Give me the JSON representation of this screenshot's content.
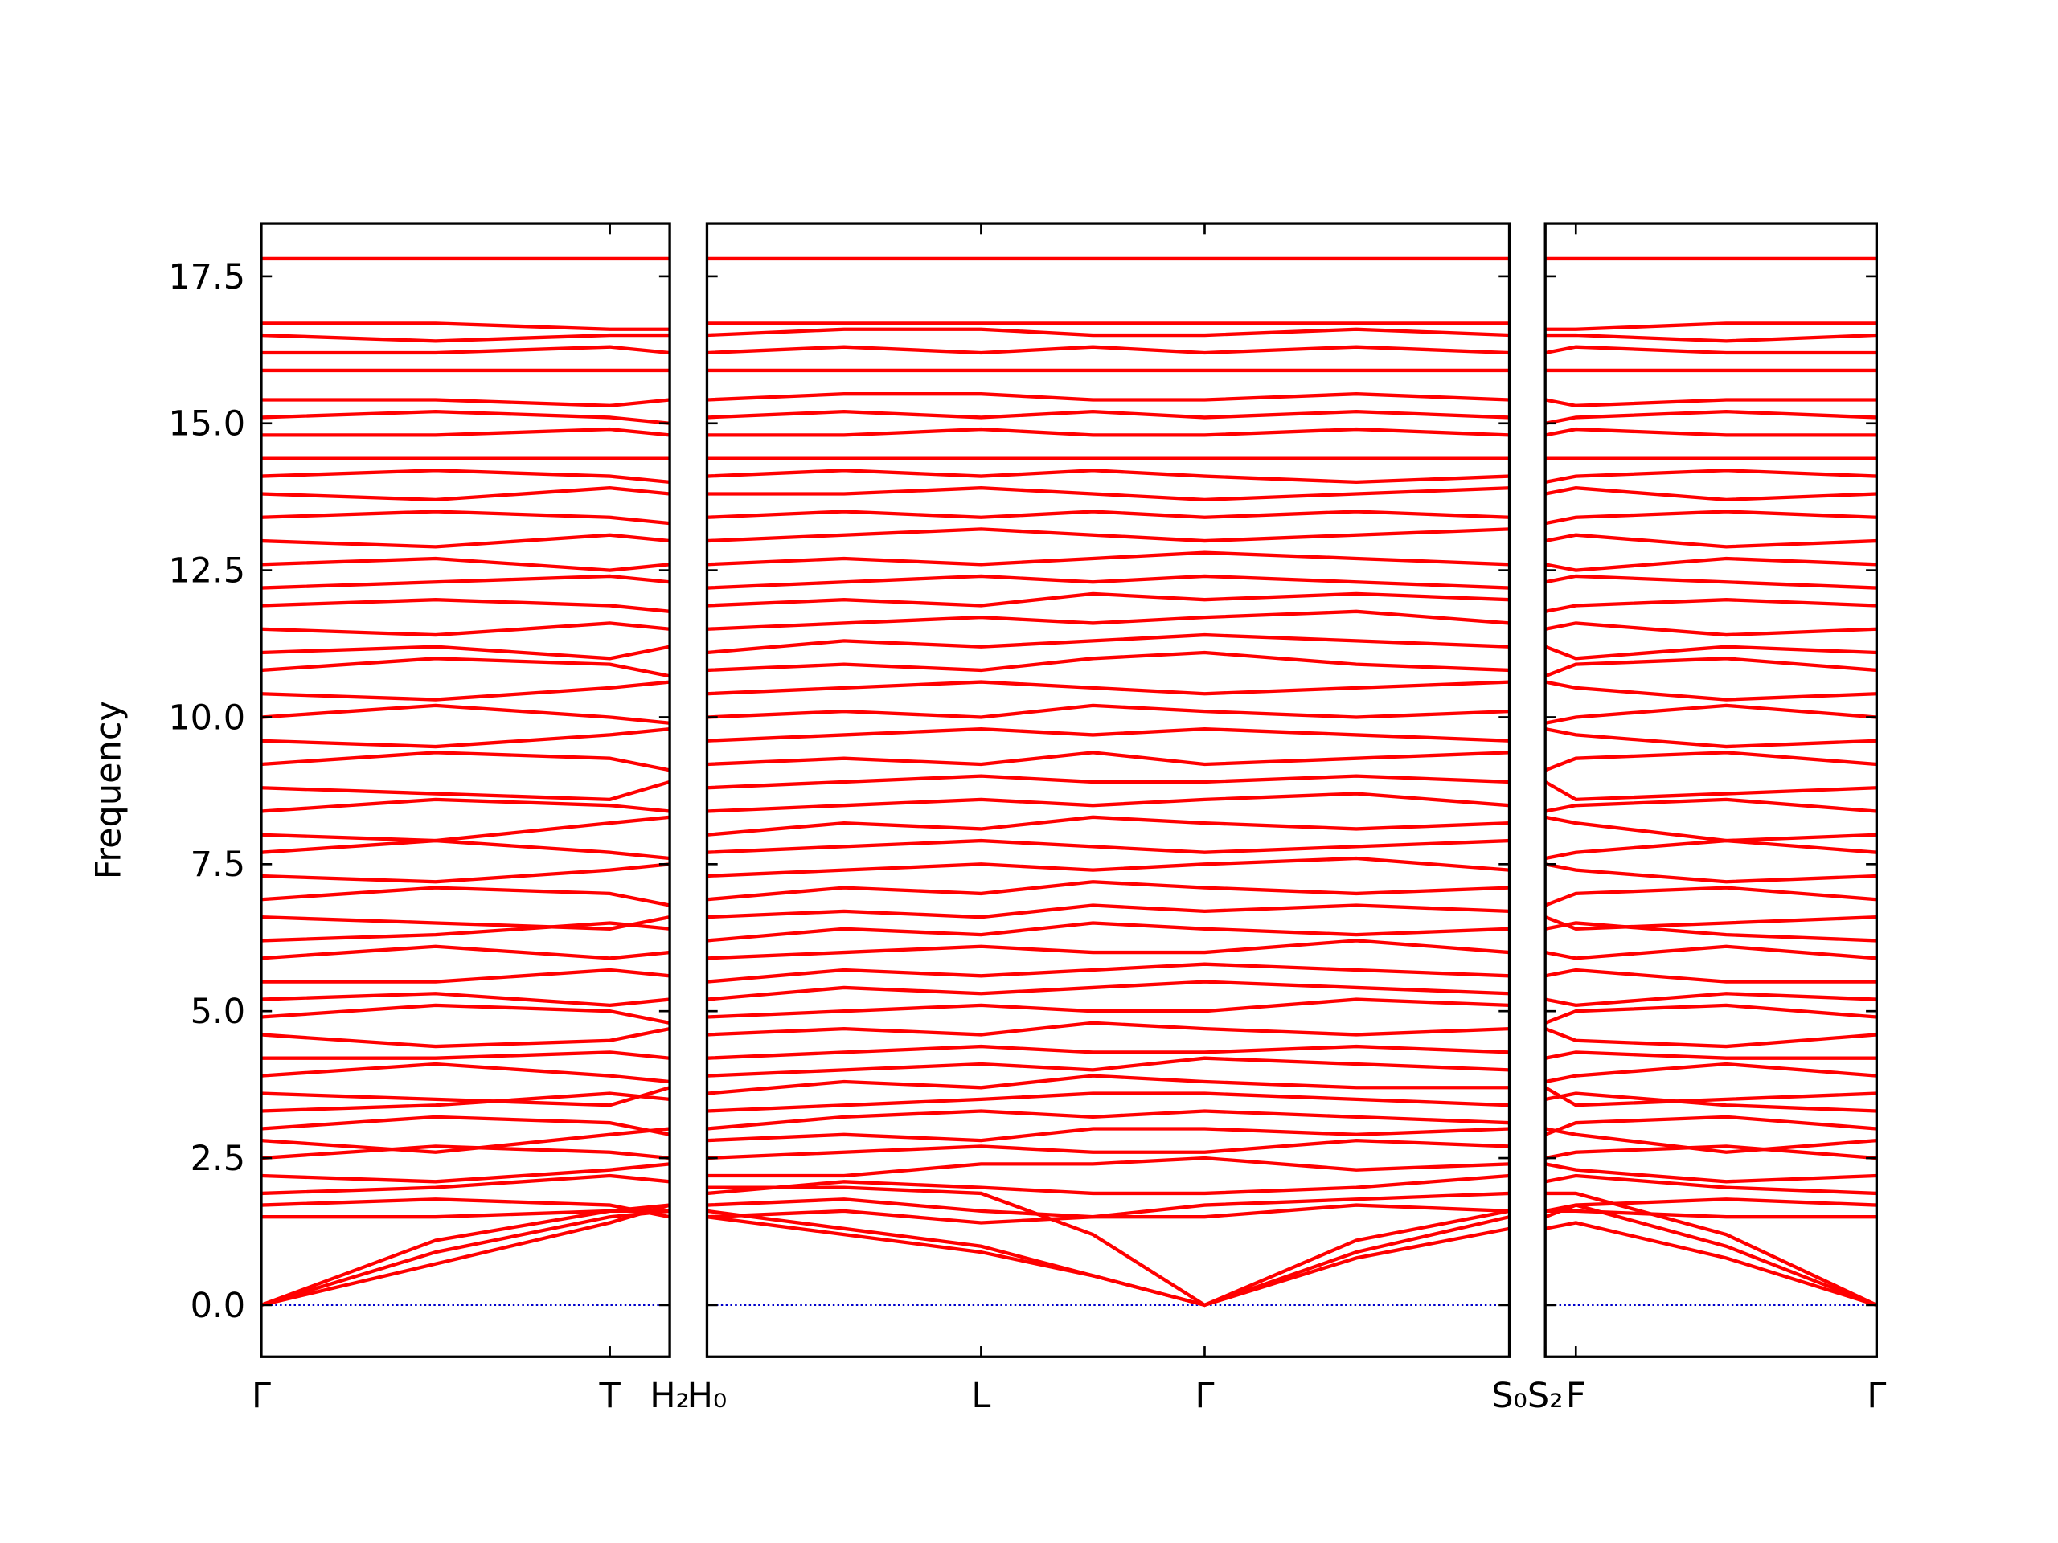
{
  "chart_data": [
    {
      "type": "line",
      "color": "#ff0000",
      "ylabel": "Frequency",
      "ytick_labels": true,
      "zero_line": {
        "value": 0,
        "color": "#0000cc"
      },
      "x": [
        0,
        1.31,
        2.62,
        3.07
      ],
      "xlim": [
        0,
        3.07
      ],
      "xticks": [
        {
          "value": 0,
          "label": "Γ"
        },
        {
          "value": 2.62,
          "label": "T"
        },
        {
          "value": 3.07,
          "label": "H₂"
        }
      ],
      "ylim": [
        -0.88,
        18.4
      ],
      "yticks": [
        {
          "value": 0,
          "label": "0.0"
        },
        2.5,
        {
          "value": 5,
          "label": "5.0"
        },
        7.5,
        {
          "value": 10,
          "label": "10.0"
        },
        12.5,
        {
          "value": 15,
          "label": "15.0"
        },
        17.5
      ],
      "bands": [
        [
          0,
          0.9,
          1.5,
          1.6
        ],
        [
          0,
          0.7,
          1.4,
          1.7
        ],
        [
          0,
          1.1,
          1.6,
          1.7
        ],
        [
          1.5,
          1.5,
          1.6,
          1.6
        ],
        [
          1.7,
          1.8,
          1.7,
          1.5
        ],
        [
          1.9,
          2.0,
          2.2,
          2.1
        ],
        [
          2.2,
          2.1,
          2.3,
          2.4
        ],
        [
          2.5,
          2.7,
          2.6,
          2.5
        ],
        [
          2.8,
          2.6,
          2.9,
          3.0
        ],
        [
          3.0,
          3.2,
          3.1,
          2.9
        ],
        [
          3.3,
          3.4,
          3.6,
          3.5
        ],
        [
          3.6,
          3.5,
          3.4,
          3.7
        ],
        [
          3.9,
          4.1,
          3.9,
          3.8
        ],
        [
          4.2,
          4.2,
          4.3,
          4.2
        ],
        [
          4.6,
          4.4,
          4.5,
          4.7
        ],
        [
          4.9,
          5.1,
          5.0,
          4.8
        ],
        [
          5.2,
          5.3,
          5.1,
          5.2
        ],
        [
          5.5,
          5.5,
          5.7,
          5.6
        ],
        [
          5.9,
          6.1,
          5.9,
          6.0
        ],
        [
          6.2,
          6.3,
          6.5,
          6.4
        ],
        [
          6.6,
          6.5,
          6.4,
          6.6
        ],
        [
          6.9,
          7.1,
          7.0,
          6.8
        ],
        [
          7.3,
          7.2,
          7.4,
          7.5
        ],
        [
          7.7,
          7.9,
          7.7,
          7.6
        ],
        [
          8.0,
          7.9,
          8.2,
          8.3
        ],
        [
          8.4,
          8.6,
          8.5,
          8.4
        ],
        [
          8.8,
          8.7,
          8.6,
          8.9
        ],
        [
          9.2,
          9.4,
          9.3,
          9.1
        ],
        [
          9.6,
          9.5,
          9.7,
          9.8
        ],
        [
          10.0,
          10.2,
          10.0,
          9.9
        ],
        [
          10.4,
          10.3,
          10.5,
          10.6
        ],
        [
          10.8,
          11.0,
          10.9,
          10.7
        ],
        [
          11.1,
          11.2,
          11.0,
          11.2
        ],
        [
          11.5,
          11.4,
          11.6,
          11.5
        ],
        [
          11.9,
          12.0,
          11.9,
          11.8
        ],
        [
          12.2,
          12.3,
          12.4,
          12.3
        ],
        [
          12.6,
          12.7,
          12.5,
          12.6
        ],
        [
          13.0,
          12.9,
          13.1,
          13.0
        ],
        [
          13.4,
          13.5,
          13.4,
          13.3
        ],
        [
          13.8,
          13.7,
          13.9,
          13.8
        ],
        [
          14.1,
          14.2,
          14.1,
          14.0
        ],
        [
          14.4,
          14.4,
          14.4,
          14.4
        ],
        [
          14.8,
          14.8,
          14.9,
          14.8
        ],
        [
          15.1,
          15.2,
          15.1,
          15.0
        ],
        [
          15.4,
          15.4,
          15.3,
          15.4
        ],
        [
          15.9,
          15.9,
          15.9,
          15.9
        ],
        [
          16.2,
          16.2,
          16.3,
          16.2
        ],
        [
          16.5,
          16.4,
          16.5,
          16.5
        ],
        [
          16.7,
          16.7,
          16.6,
          16.6
        ],
        [
          17.8,
          17.8,
          17.8,
          17.8
        ]
      ]
    },
    {
      "type": "line",
      "color": "#ff0000",
      "ytick_labels": false,
      "zero_line": {
        "value": 0,
        "color": "#0000cc"
      },
      "x": [
        0,
        1.03,
        2.06,
        2.9,
        3.74,
        4.88,
        6.03
      ],
      "xlim": [
        0,
        6.03
      ],
      "xticks": [
        {
          "value": 0,
          "label": "H₀"
        },
        {
          "value": 2.06,
          "label": "L"
        },
        {
          "value": 3.74,
          "label": "Γ"
        },
        {
          "value": 6.03,
          "label": "S₀"
        }
      ],
      "ylim": [
        -0.88,
        18.4
      ],
      "yticks": [
        {
          "value": 0,
          "label": "0.0"
        },
        2.5,
        {
          "value": 5,
          "label": "5.0"
        },
        7.5,
        {
          "value": 10,
          "label": "10.0"
        },
        12.5,
        {
          "value": 15,
          "label": "15.0"
        },
        17.5
      ],
      "bands": [
        [
          1.5,
          1.2,
          0.9,
          0.5,
          0,
          0.8,
          1.3
        ],
        [
          1.6,
          1.3,
          1.0,
          0.5,
          0,
          0.9,
          1.5
        ],
        [
          2.0,
          2.0,
          1.9,
          1.2,
          0,
          1.1,
          1.6
        ],
        [
          1.5,
          1.6,
          1.4,
          1.5,
          1.5,
          1.7,
          1.6
        ],
        [
          1.7,
          1.8,
          1.6,
          1.5,
          1.7,
          1.8,
          1.9
        ],
        [
          1.9,
          2.1,
          2.0,
          1.9,
          1.9,
          2.0,
          2.2
        ],
        [
          2.2,
          2.2,
          2.4,
          2.4,
          2.5,
          2.3,
          2.4
        ],
        [
          2.5,
          2.6,
          2.7,
          2.6,
          2.6,
          2.8,
          2.7
        ],
        [
          2.8,
          2.9,
          2.8,
          3.0,
          3.0,
          2.9,
          3.0
        ],
        [
          3.0,
          3.2,
          3.3,
          3.2,
          3.3,
          3.2,
          3.1
        ],
        [
          3.3,
          3.4,
          3.5,
          3.6,
          3.6,
          3.5,
          3.4
        ],
        [
          3.6,
          3.8,
          3.7,
          3.9,
          3.8,
          3.7,
          3.7
        ],
        [
          3.9,
          4.0,
          4.1,
          4.0,
          4.2,
          4.1,
          4.0
        ],
        [
          4.2,
          4.3,
          4.4,
          4.3,
          4.3,
          4.4,
          4.3
        ],
        [
          4.6,
          4.7,
          4.6,
          4.8,
          4.7,
          4.6,
          4.7
        ],
        [
          4.9,
          5.0,
          5.1,
          5.0,
          5.0,
          5.2,
          5.1
        ],
        [
          5.2,
          5.4,
          5.3,
          5.4,
          5.5,
          5.4,
          5.3
        ],
        [
          5.5,
          5.7,
          5.6,
          5.7,
          5.8,
          5.7,
          5.6
        ],
        [
          5.9,
          6.0,
          6.1,
          6.0,
          6.0,
          6.2,
          6.0
        ],
        [
          6.2,
          6.4,
          6.3,
          6.5,
          6.4,
          6.3,
          6.4
        ],
        [
          6.6,
          6.7,
          6.6,
          6.8,
          6.7,
          6.8,
          6.7
        ],
        [
          6.9,
          7.1,
          7.0,
          7.2,
          7.1,
          7.0,
          7.1
        ],
        [
          7.3,
          7.4,
          7.5,
          7.4,
          7.5,
          7.6,
          7.4
        ],
        [
          7.7,
          7.8,
          7.9,
          7.8,
          7.7,
          7.8,
          7.9
        ],
        [
          8.0,
          8.2,
          8.1,
          8.3,
          8.2,
          8.1,
          8.2
        ],
        [
          8.4,
          8.5,
          8.6,
          8.5,
          8.6,
          8.7,
          8.5
        ],
        [
          8.8,
          8.9,
          9.0,
          8.9,
          8.9,
          9.0,
          8.9
        ],
        [
          9.2,
          9.3,
          9.2,
          9.4,
          9.2,
          9.3,
          9.4
        ],
        [
          9.6,
          9.7,
          9.8,
          9.7,
          9.8,
          9.7,
          9.6
        ],
        [
          10.0,
          10.1,
          10.0,
          10.2,
          10.1,
          10.0,
          10.1
        ],
        [
          10.4,
          10.5,
          10.6,
          10.5,
          10.4,
          10.5,
          10.6
        ],
        [
          10.8,
          10.9,
          10.8,
          11.0,
          11.1,
          10.9,
          10.8
        ],
        [
          11.1,
          11.3,
          11.2,
          11.3,
          11.4,
          11.3,
          11.2
        ],
        [
          11.5,
          11.6,
          11.7,
          11.6,
          11.7,
          11.8,
          11.6
        ],
        [
          11.9,
          12.0,
          11.9,
          12.1,
          12.0,
          12.1,
          12.0
        ],
        [
          12.2,
          12.3,
          12.4,
          12.3,
          12.4,
          12.3,
          12.2
        ],
        [
          12.6,
          12.7,
          12.6,
          12.7,
          12.8,
          12.7,
          12.6
        ],
        [
          13.0,
          13.1,
          13.2,
          13.1,
          13.0,
          13.1,
          13.2
        ],
        [
          13.4,
          13.5,
          13.4,
          13.5,
          13.4,
          13.5,
          13.4
        ],
        [
          13.8,
          13.8,
          13.9,
          13.8,
          13.7,
          13.8,
          13.9
        ],
        [
          14.1,
          14.2,
          14.1,
          14.2,
          14.1,
          14.0,
          14.1
        ],
        [
          14.4,
          14.4,
          14.4,
          14.4,
          14.4,
          14.4,
          14.4
        ],
        [
          14.8,
          14.8,
          14.9,
          14.8,
          14.8,
          14.9,
          14.8
        ],
        [
          15.1,
          15.2,
          15.1,
          15.2,
          15.1,
          15.2,
          15.1
        ],
        [
          15.4,
          15.5,
          15.5,
          15.4,
          15.4,
          15.5,
          15.4
        ],
        [
          15.9,
          15.9,
          15.9,
          15.9,
          15.9,
          15.9,
          15.9
        ],
        [
          16.2,
          16.3,
          16.2,
          16.3,
          16.2,
          16.3,
          16.2
        ],
        [
          16.5,
          16.6,
          16.6,
          16.5,
          16.5,
          16.6,
          16.5
        ],
        [
          16.7,
          16.7,
          16.7,
          16.7,
          16.7,
          16.7,
          16.7
        ],
        [
          17.8,
          17.8,
          17.8,
          17.8,
          17.8,
          17.8,
          17.8
        ]
      ]
    },
    {
      "type": "line",
      "color": "#ff0000",
      "ytick_labels": false,
      "zero_line": {
        "value": 0,
        "color": "#0000cc"
      },
      "x": [
        0,
        0.23,
        1.36,
        2.49
      ],
      "xlim": [
        0,
        2.49
      ],
      "xticks": [
        {
          "value": 0,
          "label": "S₂"
        },
        {
          "value": 0.23,
          "label": "F"
        },
        {
          "value": 2.49,
          "label": "Γ"
        }
      ],
      "ylim": [
        -0.88,
        18.4
      ],
      "yticks": [
        {
          "value": 0,
          "label": "0.0"
        },
        2.5,
        {
          "value": 5,
          "label": "5.0"
        },
        7.5,
        {
          "value": 10,
          "label": "10.0"
        },
        12.5,
        {
          "value": 15,
          "label": "15.0"
        },
        17.5
      ],
      "bands": [
        [
          1.6,
          1.7,
          1.0,
          0
        ],
        [
          1.3,
          1.4,
          0.8,
          0
        ],
        [
          1.9,
          1.9,
          1.2,
          0
        ],
        [
          1.6,
          1.6,
          1.5,
          1.5
        ],
        [
          1.5,
          1.7,
          1.8,
          1.7
        ],
        [
          2.1,
          2.2,
          2.0,
          1.9
        ],
        [
          2.4,
          2.3,
          2.1,
          2.2
        ],
        [
          2.5,
          2.6,
          2.7,
          2.5
        ],
        [
          3.0,
          2.9,
          2.6,
          2.8
        ],
        [
          2.9,
          3.1,
          3.2,
          3.0
        ],
        [
          3.5,
          3.6,
          3.4,
          3.3
        ],
        [
          3.7,
          3.4,
          3.5,
          3.6
        ],
        [
          3.8,
          3.9,
          4.1,
          3.9
        ],
        [
          4.2,
          4.3,
          4.2,
          4.2
        ],
        [
          4.7,
          4.5,
          4.4,
          4.6
        ],
        [
          4.8,
          5.0,
          5.1,
          4.9
        ],
        [
          5.2,
          5.1,
          5.3,
          5.2
        ],
        [
          5.6,
          5.7,
          5.5,
          5.5
        ],
        [
          6.0,
          5.9,
          6.1,
          5.9
        ],
        [
          6.4,
          6.5,
          6.3,
          6.2
        ],
        [
          6.6,
          6.4,
          6.5,
          6.6
        ],
        [
          6.8,
          7.0,
          7.1,
          6.9
        ],
        [
          7.5,
          7.4,
          7.2,
          7.3
        ],
        [
          7.6,
          7.7,
          7.9,
          7.7
        ],
        [
          8.3,
          8.2,
          7.9,
          8.0
        ],
        [
          8.4,
          8.5,
          8.6,
          8.4
        ],
        [
          8.9,
          8.6,
          8.7,
          8.8
        ],
        [
          9.1,
          9.3,
          9.4,
          9.2
        ],
        [
          9.8,
          9.7,
          9.5,
          9.6
        ],
        [
          9.9,
          10.0,
          10.2,
          10.0
        ],
        [
          10.6,
          10.5,
          10.3,
          10.4
        ],
        [
          10.7,
          10.9,
          11.0,
          10.8
        ],
        [
          11.2,
          11.0,
          11.2,
          11.1
        ],
        [
          11.5,
          11.6,
          11.4,
          11.5
        ],
        [
          11.8,
          11.9,
          12.0,
          11.9
        ],
        [
          12.3,
          12.4,
          12.3,
          12.2
        ],
        [
          12.6,
          12.5,
          12.7,
          12.6
        ],
        [
          13.0,
          13.1,
          12.9,
          13.0
        ],
        [
          13.3,
          13.4,
          13.5,
          13.4
        ],
        [
          13.8,
          13.9,
          13.7,
          13.8
        ],
        [
          14.0,
          14.1,
          14.2,
          14.1
        ],
        [
          14.4,
          14.4,
          14.4,
          14.4
        ],
        [
          14.8,
          14.9,
          14.8,
          14.8
        ],
        [
          15.0,
          15.1,
          15.2,
          15.1
        ],
        [
          15.4,
          15.3,
          15.4,
          15.4
        ],
        [
          15.9,
          15.9,
          15.9,
          15.9
        ],
        [
          16.2,
          16.3,
          16.2,
          16.2
        ],
        [
          16.5,
          16.5,
          16.4,
          16.5
        ],
        [
          16.6,
          16.6,
          16.7,
          16.7
        ],
        [
          17.8,
          17.8,
          17.8,
          17.8
        ]
      ]
    }
  ]
}
